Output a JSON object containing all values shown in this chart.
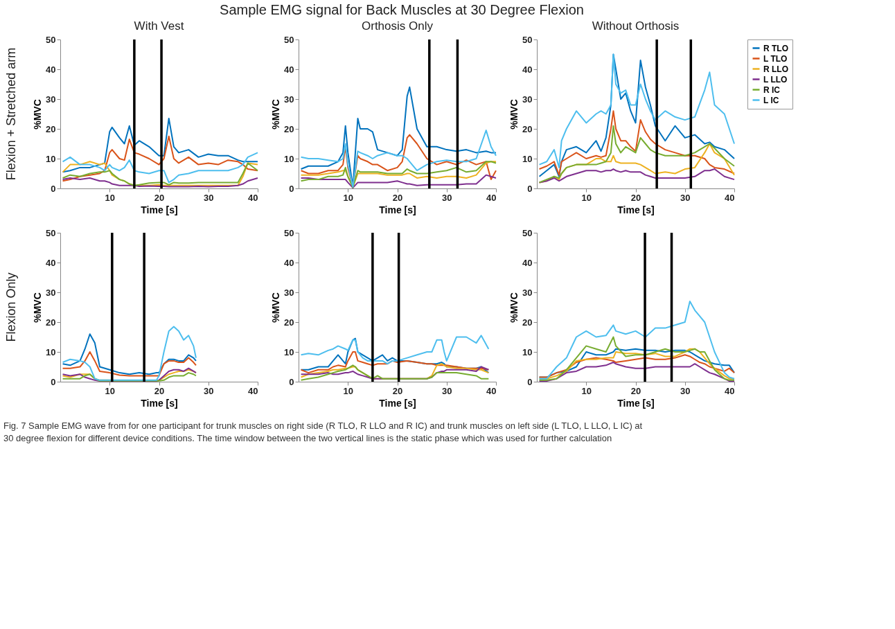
{
  "chart_data": [
    {
      "type": "line",
      "title": "With Vest",
      "xlabel": "Time [s]",
      "ylabel": "%MVC",
      "xlim": [
        0,
        40
      ],
      "xticks": [
        10,
        20,
        30,
        40
      ],
      "ylim": [
        0,
        50
      ],
      "yticks": [
        0,
        10,
        20,
        30,
        40,
        50
      ],
      "grid": false,
      "annotations": [
        "Sample EMG signal for Back Muscles at 30 Degree Flexion",
        "Flexion + Stretched arm"
      ],
      "ref_lines": [
        {
          "axis": "x",
          "value": 15,
          "color": "#000000"
        },
        {
          "axis": "x",
          "value": 20.5,
          "color": "#000000"
        }
      ],
      "x": [
        0.5,
        2,
        4,
        6,
        8,
        9,
        10,
        10.5,
        12,
        13,
        14,
        15,
        16,
        18,
        20,
        21,
        22,
        23,
        24,
        26,
        28,
        30,
        32,
        34,
        36,
        37,
        38,
        40
      ],
      "series": [
        {
          "color": "#0072bd",
          "values": [
            5.5,
            6,
            7,
            7,
            8,
            8.5,
            19,
            20.5,
            17,
            15,
            21,
            14.5,
            16,
            14,
            11,
            11,
            23.5,
            14,
            12,
            13,
            10.5,
            11.5,
            11,
            11,
            9.5,
            9,
            9,
            9
          ]
        },
        {
          "color": "#d95319",
          "values": [
            2.5,
            3,
            4,
            4.5,
            5,
            6,
            12,
            13,
            10,
            9.5,
            16.5,
            12,
            11.5,
            10,
            8,
            10,
            17.5,
            10,
            8.5,
            10.5,
            8,
            8.5,
            8,
            9.5,
            9,
            8,
            6.5,
            6
          ]
        },
        {
          "color": "#edb120",
          "values": [
            5.5,
            8,
            8,
            9,
            8,
            8.5,
            6,
            4.5,
            3,
            2.5,
            1.5,
            1,
            1,
            1,
            1.2,
            1,
            1,
            1,
            1,
            1,
            1,
            1,
            1,
            1,
            1,
            4,
            8.5,
            8
          ]
        },
        {
          "color": "#7e2f8e",
          "values": [
            3,
            3.5,
            3,
            3.5,
            2.5,
            2.5,
            2,
            1.5,
            1,
            1,
            1,
            1,
            0.7,
            0.8,
            0.7,
            0.7,
            0.6,
            0.6,
            0.6,
            0.6,
            0.7,
            0.6,
            0.7,
            0.7,
            1,
            1.5,
            2.5,
            3.5
          ]
        },
        {
          "color": "#77ac30",
          "values": [
            3.5,
            4.5,
            4,
            5,
            5.5,
            5.5,
            6,
            5,
            3,
            2.5,
            1.5,
            1,
            1.2,
            1.8,
            2,
            2,
            1.2,
            2,
            1.8,
            1.8,
            2,
            2,
            2,
            2,
            2,
            5,
            8.5,
            6
          ]
        },
        {
          "color": "#4dbeee",
          "values": [
            9,
            10.5,
            8,
            8,
            7,
            6,
            8,
            7,
            6,
            7,
            9.5,
            6,
            5.5,
            5,
            6,
            6,
            2,
            3,
            4.5,
            5,
            6,
            6,
            6,
            6,
            7,
            8,
            10.5,
            12
          ]
        }
      ]
    },
    {
      "type": "line",
      "title": "Orthosis Only",
      "xlabel": "Time [s]",
      "ylabel": "%MVC",
      "xlim": [
        0,
        40
      ],
      "xticks": [
        10,
        20,
        30,
        40
      ],
      "ylim": [
        0,
        50
      ],
      "yticks": [
        0,
        10,
        20,
        30,
        40,
        50
      ],
      "grid": false,
      "ref_lines": [
        {
          "axis": "x",
          "value": 26.5,
          "color": "#000000"
        },
        {
          "axis": "x",
          "value": 32.2,
          "color": "#000000"
        }
      ],
      "x": [
        0.5,
        2,
        4,
        6,
        8,
        9,
        9.5,
        10,
        11,
        12,
        12.5,
        14,
        15,
        16,
        18,
        20,
        21,
        22,
        22.5,
        24,
        26,
        28,
        30,
        32,
        34,
        36,
        38,
        39,
        40
      ],
      "series": [
        {
          "color": "#0072bd",
          "values": [
            6.5,
            7.5,
            7.5,
            7.5,
            9,
            12,
            21,
            12,
            0.5,
            23.5,
            20,
            20,
            19,
            13,
            12,
            11,
            13,
            31,
            34,
            20,
            14,
            14,
            13,
            12.5,
            13,
            12,
            12.5,
            12,
            12
          ]
        },
        {
          "color": "#d95319",
          "values": [
            6,
            5,
            5,
            6,
            6,
            8,
            14,
            7,
            0.5,
            11,
            10,
            9,
            8,
            8,
            6,
            7,
            9,
            17,
            18,
            15,
            10,
            8,
            9,
            8,
            9.5,
            8,
            9,
            3,
            6
          ]
        },
        {
          "color": "#edb120",
          "values": [
            4.5,
            4.5,
            4.5,
            5,
            5.5,
            6,
            6,
            4,
            0.5,
            5,
            5,
            5,
            5,
            5,
            4.5,
            4.5,
            4.5,
            5,
            5,
            3.5,
            4,
            3.5,
            4,
            4,
            3.5,
            4.5,
            8.5,
            9,
            9
          ]
        },
        {
          "color": "#7e2f8e",
          "values": [
            3.5,
            3.5,
            3,
            3,
            3,
            3,
            3,
            2,
            0.2,
            2,
            2,
            2,
            2,
            2,
            2,
            2.5,
            2,
            1.5,
            1.5,
            1,
            1.2,
            1.2,
            1.2,
            1.2,
            1.5,
            1.5,
            4.5,
            4,
            3.5
          ]
        },
        {
          "color": "#77ac30",
          "values": [
            2.5,
            3,
            3,
            4,
            4,
            4.5,
            7,
            4,
            0.3,
            6,
            5.5,
            5.5,
            5.5,
            5.5,
            5,
            5,
            5,
            6.5,
            6,
            5,
            5,
            5.5,
            6,
            7,
            5.5,
            6,
            9,
            9,
            8.5
          ]
        },
        {
          "color": "#4dbeee",
          "values": [
            10.5,
            10,
            10,
            9.5,
            9,
            10,
            15,
            8,
            0.5,
            12.5,
            12,
            11,
            10,
            11,
            12,
            11,
            11,
            10,
            9,
            6,
            8,
            9,
            9.5,
            9,
            9,
            10,
            19.5,
            14,
            11
          ]
        }
      ]
    },
    {
      "type": "line",
      "title": "Without Orthosis",
      "xlabel": "Time [s]",
      "ylabel": "%MVC",
      "xlim": [
        0,
        40
      ],
      "xticks": [
        10,
        20,
        30,
        40
      ],
      "ylim": [
        0,
        50
      ],
      "yticks": [
        0,
        10,
        20,
        30,
        40,
        50
      ],
      "grid": false,
      "legend": "top right",
      "ref_lines": [
        {
          "axis": "x",
          "value": 24.3,
          "color": "#000000"
        },
        {
          "axis": "x",
          "value": 31.2,
          "color": "#000000"
        }
      ],
      "x": [
        0.5,
        2,
        3.5,
        4.5,
        5,
        6,
        8,
        10,
        12,
        13,
        14,
        15,
        15.5,
        16,
        17,
        18,
        19,
        20,
        21,
        22,
        23,
        24,
        26,
        28,
        30,
        32,
        34,
        35,
        36,
        38,
        40
      ],
      "series": [
        {
          "name": "R TLO",
          "color": "#0072bd",
          "values": [
            4,
            6,
            8,
            4,
            9,
            13,
            14,
            12,
            16,
            12.5,
            17,
            28,
            45,
            40,
            30,
            32,
            26,
            22,
            43,
            34,
            28,
            21,
            16,
            21,
            17,
            18,
            15,
            15.5,
            14,
            13,
            10
          ]
        },
        {
          "name": "L TLO",
          "color": "#d95319",
          "values": [
            6.5,
            7.5,
            9,
            4.5,
            9,
            10,
            12,
            10,
            11,
            10.5,
            11,
            20,
            26,
            20,
            16,
            16,
            14,
            12.5,
            23,
            19,
            16.5,
            15,
            13,
            12,
            11,
            11,
            10,
            8,
            7,
            6.5,
            5
          ]
        },
        {
          "name": "R LLO",
          "color": "#edb120",
          "values": [
            2,
            2.5,
            4,
            3,
            5,
            7,
            8,
            8,
            10,
            10,
            9,
            9,
            11,
            9,
            8.5,
            8.5,
            8.5,
            8.5,
            8,
            7,
            6,
            5,
            5.5,
            5,
            6.5,
            7,
            12,
            15,
            12,
            10,
            4.5
          ]
        },
        {
          "name": "L LLO",
          "color": "#7e2f8e",
          "values": [
            2,
            2.5,
            3.5,
            2.5,
            3,
            4,
            5,
            6,
            6,
            5.5,
            6,
            6,
            6.5,
            6,
            5.5,
            6,
            5.5,
            5.5,
            5.5,
            4.5,
            4,
            3.5,
            3.5,
            3.5,
            3.5,
            4,
            6,
            6,
            6.5,
            4,
            3
          ]
        },
        {
          "name": "R IC",
          "color": "#77ac30",
          "values": [
            2,
            3,
            4,
            3.5,
            5,
            7,
            8,
            8,
            8,
            8.5,
            9,
            12,
            21,
            15,
            12,
            14,
            13,
            12,
            17,
            15,
            13,
            12,
            11,
            11,
            11,
            12,
            14,
            15,
            13.5,
            10,
            7.5
          ]
        },
        {
          "name": "L IC",
          "color": "#4dbeee",
          "values": [
            8,
            9,
            13,
            7,
            16,
            20,
            26,
            22,
            25,
            26,
            25,
            28,
            45,
            35,
            32,
            33,
            28,
            28,
            35,
            30,
            26,
            23,
            26,
            24,
            23,
            24,
            33,
            39,
            28,
            25,
            15
          ]
        }
      ]
    },
    {
      "type": "line",
      "xlabel": "Time [s]",
      "ylabel": "%MVC",
      "xlim": [
        0,
        40
      ],
      "xticks": [
        10,
        20,
        30,
        40
      ],
      "ylim": [
        0,
        50
      ],
      "yticks": [
        0,
        10,
        20,
        30,
        40,
        50
      ],
      "grid": false,
      "annotations": [
        "Flexion Only"
      ],
      "ref_lines": [
        {
          "axis": "x",
          "value": 10.5,
          "color": "#000000"
        },
        {
          "axis": "x",
          "value": 17,
          "color": "#000000"
        }
      ],
      "x": [
        0.5,
        2,
        4,
        5,
        6,
        7,
        8,
        10,
        12,
        14,
        16,
        18,
        19.5,
        20,
        21,
        22,
        23,
        24,
        25,
        26,
        27,
        27.5
      ],
      "series": [
        {
          "color": "#0072bd",
          "values": [
            6,
            5.5,
            7,
            11,
            16,
            13,
            5,
            4,
            3,
            2.5,
            3,
            2.5,
            3,
            3,
            6,
            7.5,
            7.5,
            7,
            7,
            9,
            8,
            7
          ]
        },
        {
          "color": "#d95319",
          "values": [
            4.5,
            4.5,
            5,
            7,
            10,
            7,
            3.5,
            3,
            2.2,
            2,
            2,
            2,
            2,
            2,
            6,
            7,
            7,
            6.5,
            6.5,
            8,
            6.5,
            5.5
          ]
        },
        {
          "color": "#edb120",
          "values": [
            2,
            1.5,
            2.5,
            2.5,
            2.5,
            1,
            0.5,
            0.5,
            0.3,
            0.3,
            0.3,
            0.3,
            0.3,
            0.5,
            1.5,
            2.5,
            3,
            3.5,
            3.5,
            4,
            3.5,
            3
          ]
        },
        {
          "color": "#7e2f8e",
          "values": [
            2.5,
            2,
            2.5,
            1.5,
            1,
            0.5,
            0.2,
            0.2,
            0.2,
            0.2,
            0.2,
            0.2,
            0.2,
            0.5,
            2,
            3.5,
            4,
            4,
            3.5,
            4.5,
            3.5,
            3
          ]
        },
        {
          "color": "#77ac30",
          "values": [
            1,
            1,
            1,
            2,
            2.5,
            1,
            0.3,
            0.3,
            0.3,
            0.3,
            0.3,
            0.3,
            0.3,
            0.3,
            0.5,
            1.5,
            2,
            2,
            2,
            3,
            2.5,
            2
          ]
        },
        {
          "color": "#4dbeee",
          "values": [
            6.5,
            7.5,
            7,
            6.5,
            5,
            1,
            0.5,
            0.5,
            0.5,
            0.5,
            0.5,
            0.5,
            0.5,
            2,
            10,
            17,
            18.5,
            17,
            14,
            15.5,
            12,
            8
          ]
        }
      ]
    },
    {
      "type": "line",
      "xlabel": "Time [s]",
      "ylabel": "%MVC",
      "xlim": [
        0,
        40
      ],
      "xticks": [
        10,
        20,
        30,
        40
      ],
      "ylim": [
        0,
        50
      ],
      "yticks": [
        0,
        10,
        20,
        30,
        40,
        50
      ],
      "grid": false,
      "ref_lines": [
        {
          "axis": "x",
          "value": 15,
          "color": "#000000"
        },
        {
          "axis": "x",
          "value": 20.3,
          "color": "#000000"
        }
      ],
      "x": [
        0.5,
        2,
        4,
        6,
        7,
        8,
        9.5,
        10,
        11,
        11.5,
        12,
        13,
        14,
        15,
        16,
        17,
        18,
        19,
        20,
        22,
        24,
        26,
        27,
        28,
        29,
        29.5,
        30,
        32,
        34,
        36,
        37,
        38.5
      ],
      "series": [
        {
          "color": "#0072bd",
          "values": [
            4,
            4,
            5,
            5,
            7,
            9,
            6,
            10,
            14,
            14.5,
            10,
            9,
            8,
            7,
            8,
            9,
            7,
            8,
            7,
            7,
            6.5,
            6,
            6,
            6,
            6.5,
            6,
            5,
            5,
            4.5,
            4.5,
            5,
            3
          ]
        },
        {
          "color": "#d95319",
          "values": [
            4,
            3,
            4,
            4,
            5,
            5.5,
            5,
            7,
            10,
            10,
            7,
            6.5,
            6,
            5.5,
            6,
            6,
            6,
            7,
            6.5,
            7,
            6.5,
            6,
            6,
            5.5,
            5.5,
            5.5,
            5.5,
            5,
            4.5,
            4.5,
            4.5,
            4
          ]
        },
        {
          "color": "#edb120",
          "values": [
            1.5,
            2.5,
            3,
            3.5,
            4,
            4,
            4.5,
            4.5,
            5,
            5,
            4,
            3,
            2,
            1,
            1,
            1,
            1,
            1,
            1,
            1,
            1,
            1,
            2,
            5.5,
            6,
            5.5,
            5,
            4.5,
            4.5,
            4,
            4,
            3
          ]
        },
        {
          "color": "#7e2f8e",
          "values": [
            2.5,
            2.5,
            2.5,
            3,
            2.5,
            2.5,
            3,
            3,
            3.5,
            3,
            2.5,
            2,
            1.5,
            1,
            1,
            1,
            1,
            1,
            1,
            1,
            1,
            1,
            1.5,
            3,
            3.5,
            3.5,
            4,
            4,
            4,
            3.5,
            5,
            4
          ]
        },
        {
          "color": "#77ac30",
          "values": [
            0.5,
            1,
            1.5,
            2.5,
            3,
            3.5,
            4,
            4.5,
            5.5,
            5,
            4,
            3,
            2,
            1,
            2,
            1,
            1,
            1,
            1,
            1,
            1,
            1,
            1.5,
            3,
            3,
            3,
            3,
            3,
            2.5,
            2,
            1,
            1
          ]
        },
        {
          "color": "#4dbeee",
          "values": [
            9,
            9.5,
            9,
            10.5,
            11,
            12,
            11,
            10.5,
            14,
            14,
            10,
            8,
            7,
            7,
            7,
            7,
            6,
            7,
            7,
            8,
            9,
            10,
            10,
            14,
            14,
            10,
            7,
            15,
            15,
            13,
            15.5,
            11
          ]
        }
      ]
    },
    {
      "type": "line",
      "xlabel": "Time [s]",
      "ylabel": "%MVC",
      "xlim": [
        0,
        40
      ],
      "xticks": [
        10,
        20,
        30,
        40
      ],
      "ylim": [
        0,
        50
      ],
      "yticks": [
        0,
        10,
        20,
        30,
        40,
        50
      ],
      "grid": false,
      "annotations": [
        "Fig. 7 Sample EMG wave from for one participant for trunk muscles on right side (R TLO, R LLO and R IC) and trunk muscles on left side (L TLO, L LLO, L IC) at 30 degree flexion for different device conditions. The time window between the two vertical lines is the static phase which was used for further calculation"
      ],
      "ref_lines": [
        {
          "axis": "x",
          "value": 21.9,
          "color": "#000000"
        },
        {
          "axis": "x",
          "value": 27.3,
          "color": "#000000"
        }
      ],
      "x": [
        0.5,
        2,
        4,
        6,
        8,
        10,
        12,
        14,
        15.5,
        16,
        18,
        20,
        22,
        24,
        26,
        28,
        30,
        31,
        32,
        33,
        34,
        35,
        36,
        38,
        39,
        40
      ],
      "series": [
        {
          "color": "#0072bd",
          "values": [
            1.5,
            1.5,
            3,
            3.5,
            5,
            10,
            9,
            9,
            10,
            11,
            10.5,
            11,
            10.5,
            10.5,
            10,
            10.5,
            10.5,
            10,
            9,
            8,
            7,
            6.5,
            6,
            5.5,
            5.5,
            3
          ]
        },
        {
          "color": "#d95319",
          "values": [
            1.5,
            1.5,
            3,
            4,
            6.5,
            7.5,
            8,
            7.5,
            7,
            6.5,
            7,
            7.5,
            8,
            7.5,
            7.5,
            8,
            9,
            8.5,
            7.5,
            6.5,
            6,
            5,
            4.5,
            3.5,
            4.5,
            3
          ]
        },
        {
          "color": "#edb120",
          "values": [
            1,
            1,
            2,
            3.5,
            7,
            7.5,
            7.5,
            8,
            8,
            10,
            9.5,
            9.5,
            9,
            9.5,
            8.5,
            8.5,
            10,
            11,
            11,
            10,
            8,
            6,
            4.5,
            2,
            1,
            1
          ]
        },
        {
          "color": "#7e2f8e",
          "values": [
            0.2,
            0.2,
            1,
            3,
            3.5,
            5,
            5,
            5.5,
            6.5,
            6,
            5,
            4.5,
            4.5,
            5,
            5,
            5,
            5,
            5,
            6,
            5,
            4,
            3,
            2.5,
            1,
            0.2,
            0.2
          ]
        },
        {
          "color": "#77ac30",
          "values": [
            0.5,
            0.5,
            1,
            4,
            8,
            12,
            11,
            10,
            15,
            12,
            8.5,
            9,
            9,
            10,
            11,
            10,
            10,
            10.5,
            11,
            10,
            10,
            7,
            4,
            1,
            0.5,
            0.5
          ]
        },
        {
          "color": "#4dbeee",
          "values": [
            1,
            1,
            5,
            8,
            15,
            17,
            15,
            15.5,
            19,
            17,
            16,
            17,
            15,
            18,
            18,
            19,
            20,
            27,
            24,
            22,
            20,
            15,
            10,
            3,
            1.5,
            1
          ]
        }
      ]
    }
  ]
}
